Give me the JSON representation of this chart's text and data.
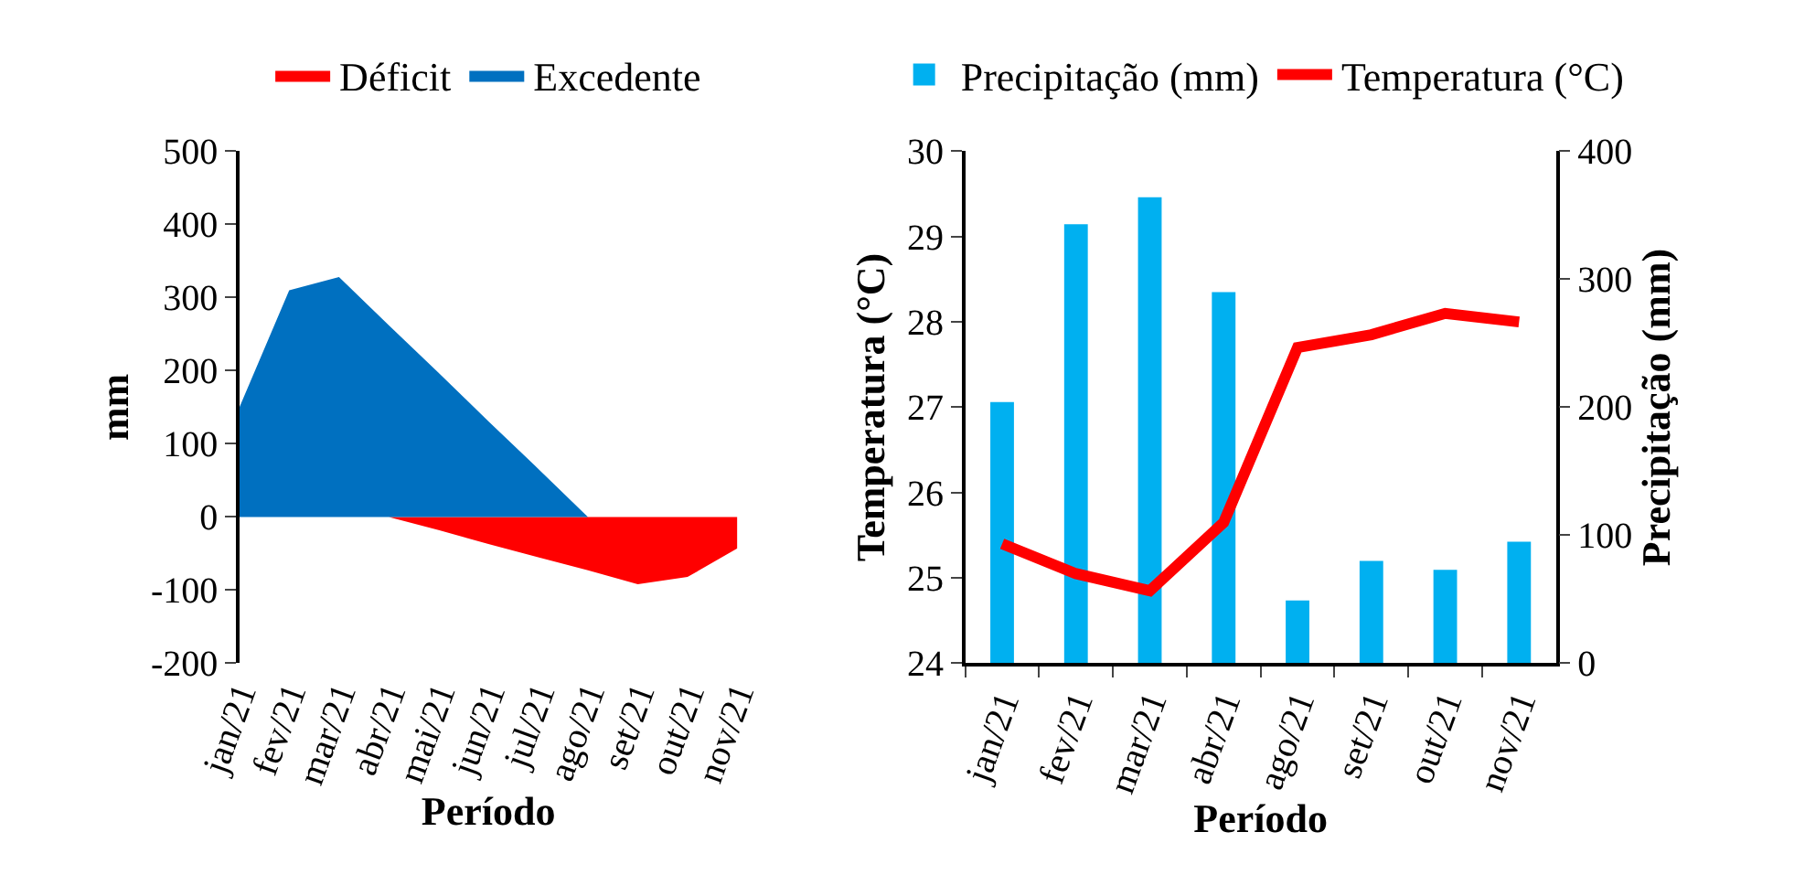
{
  "chart_data": [
    {
      "type": "area",
      "ylabel": "mm",
      "xlabel": "Período",
      "categories": [
        "jan/21",
        "fev/21",
        "mar/21",
        "abr/21",
        "mai/21",
        "jun/21",
        "jul/21",
        "ago/21",
        "set/21",
        "out/21",
        "nov/21"
      ],
      "series": [
        {
          "name": "Déficit",
          "color": "#ff0000",
          "values": [
            0,
            0,
            0,
            0,
            -18,
            -37,
            -55,
            -73,
            -92,
            -82,
            -43
          ]
        },
        {
          "name": "Excedente",
          "color": "#0070c0",
          "values": [
            150,
            310,
            328,
            262,
            197,
            131,
            66,
            0,
            0,
            0,
            0
          ]
        }
      ],
      "ylim": [
        -200,
        500
      ],
      "yticks": [
        -200,
        -100,
        0,
        100,
        200,
        300,
        400,
        500
      ],
      "legend": "top"
    },
    {
      "type": "bar",
      "xlabel": "Período",
      "ylabel": "Temperatura (°C)",
      "y2label": "Precipitação (mm)",
      "categories": [
        "jan/21",
        "fev/21",
        "mar/21",
        "abr/21",
        "ago/21",
        "set/21",
        "out/21",
        "nov/21"
      ],
      "series": [
        {
          "name": "Precipitação (mm)",
          "type": "bar",
          "axis": "y2",
          "color": "#00b0f0",
          "values": [
            204,
            343,
            364,
            290,
            49,
            80,
            73,
            95
          ]
        },
        {
          "name": "Temperatura (°C)",
          "type": "line",
          "axis": "y",
          "color": "#ff0000",
          "marker": "none",
          "values": [
            25.4,
            25.05,
            24.85,
            25.65,
            27.7,
            27.85,
            28.1,
            28.0
          ]
        }
      ],
      "ylim": [
        24,
        30
      ],
      "yticks": [
        24,
        25,
        26,
        27,
        28,
        29,
        30
      ],
      "y2lim": [
        0,
        400
      ],
      "y2ticks": [
        0,
        100,
        200,
        300,
        400
      ],
      "legend": "top"
    }
  ]
}
